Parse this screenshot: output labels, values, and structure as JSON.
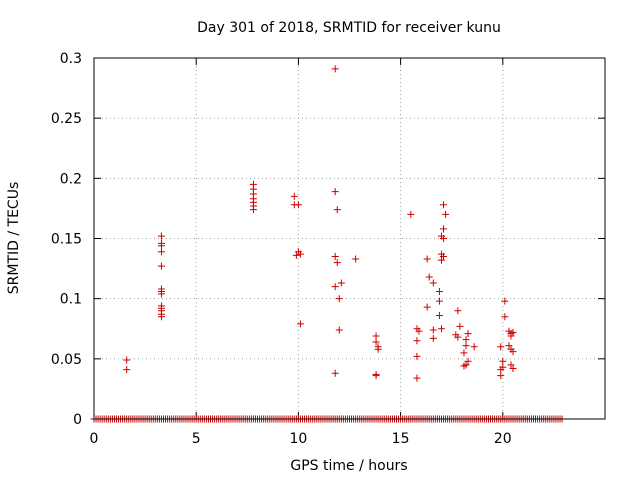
{
  "chart_data": {
    "type": "scatter",
    "title": "Day 301 of 2018, SRMTID for receiver kunu",
    "xlabel": "GPS time / hours",
    "ylabel": "SRMTID / TECUs",
    "xlim": [
      0,
      25
    ],
    "ylim": [
      0,
      0.3
    ],
    "x_ticks": [
      0,
      5,
      10,
      15,
      20
    ],
    "x_tick_labels": [
      "0",
      "5",
      "10",
      "15",
      "20"
    ],
    "y_ticks": [
      0,
      0.05,
      0.1,
      0.15,
      0.2,
      0.25,
      0.3
    ],
    "y_tick_labels": [
      "0",
      "0.05",
      "0.1",
      "0.15",
      "0.2",
      "0.25",
      "0.3"
    ],
    "grid": true,
    "marker": "+",
    "color": "#cc0000",
    "baseline_series": {
      "x_start": 0.0,
      "x_end": 22.9,
      "step": 0.1,
      "y": 0
    },
    "points": [
      [
        1.6,
        0.049
      ],
      [
        1.6,
        0.041
      ],
      [
        3.3,
        0.152
      ],
      [
        3.3,
        0.146
      ],
      [
        3.3,
        0.144
      ],
      [
        3.3,
        0.139
      ],
      [
        3.3,
        0.127
      ],
      [
        3.3,
        0.108
      ],
      [
        3.3,
        0.106
      ],
      [
        3.3,
        0.104
      ],
      [
        3.3,
        0.094
      ],
      [
        3.3,
        0.092
      ],
      [
        3.3,
        0.09
      ],
      [
        3.3,
        0.087
      ],
      [
        3.3,
        0.085
      ],
      [
        7.8,
        0.195
      ],
      [
        7.8,
        0.191
      ],
      [
        7.8,
        0.187
      ],
      [
        7.8,
        0.183
      ],
      [
        7.8,
        0.18
      ],
      [
        7.8,
        0.177
      ],
      [
        7.8,
        0.174
      ],
      [
        9.8,
        0.185
      ],
      [
        9.8,
        0.178
      ],
      [
        10.0,
        0.178
      ],
      [
        9.9,
        0.136
      ],
      [
        10.1,
        0.137
      ],
      [
        10.0,
        0.139
      ],
      [
        10.1,
        0.079
      ],
      [
        11.8,
        0.291
      ],
      [
        11.8,
        0.189
      ],
      [
        11.9,
        0.174
      ],
      [
        11.8,
        0.135
      ],
      [
        11.9,
        0.13
      ],
      [
        12.1,
        0.113
      ],
      [
        11.8,
        0.11
      ],
      [
        12.0,
        0.1
      ],
      [
        12.0,
        0.074
      ],
      [
        11.8,
        0.038
      ],
      [
        12.8,
        0.133
      ],
      [
        13.8,
        0.069
      ],
      [
        13.8,
        0.064
      ],
      [
        13.9,
        0.06
      ],
      [
        13.9,
        0.058
      ],
      [
        13.8,
        0.037
      ],
      [
        13.8,
        0.036
      ],
      [
        15.5,
        0.17
      ],
      [
        15.8,
        0.075
      ],
      [
        15.9,
        0.073
      ],
      [
        15.8,
        0.065
      ],
      [
        15.8,
        0.052
      ],
      [
        15.8,
        0.034
      ],
      [
        16.3,
        0.133
      ],
      [
        16.4,
        0.118
      ],
      [
        16.6,
        0.113
      ],
      [
        16.3,
        0.093
      ],
      [
        16.6,
        0.074
      ],
      [
        16.6,
        0.067
      ],
      [
        17.1,
        0.178
      ],
      [
        17.2,
        0.17
      ],
      [
        17.1,
        0.158
      ],
      [
        17.0,
        0.152
      ],
      [
        17.1,
        0.15
      ],
      [
        17.0,
        0.137
      ],
      [
        17.1,
        0.135
      ],
      [
        17.0,
        0.132
      ],
      [
        16.9,
        0.106
      ],
      [
        16.9,
        0.098
      ],
      [
        16.9,
        0.086
      ],
      [
        17.0,
        0.075
      ],
      [
        17.8,
        0.09
      ],
      [
        17.9,
        0.077
      ],
      [
        17.7,
        0.07
      ],
      [
        17.8,
        0.068
      ],
      [
        18.2,
        0.066
      ],
      [
        18.3,
        0.071
      ],
      [
        18.2,
        0.061
      ],
      [
        18.6,
        0.06
      ],
      [
        18.1,
        0.055
      ],
      [
        18.3,
        0.048
      ],
      [
        18.2,
        0.045
      ],
      [
        18.1,
        0.044
      ],
      [
        20.1,
        0.098
      ],
      [
        20.1,
        0.085
      ],
      [
        20.3,
        0.073
      ],
      [
        20.4,
        0.071
      ],
      [
        20.5,
        0.072
      ],
      [
        20.4,
        0.069
      ],
      [
        20.3,
        0.061
      ],
      [
        20.4,
        0.058
      ],
      [
        20.5,
        0.056
      ],
      [
        19.9,
        0.06
      ],
      [
        20.0,
        0.048
      ],
      [
        20.0,
        0.043
      ],
      [
        19.9,
        0.041
      ],
      [
        19.9,
        0.036
      ],
      [
        20.4,
        0.045
      ],
      [
        20.5,
        0.042
      ]
    ]
  }
}
